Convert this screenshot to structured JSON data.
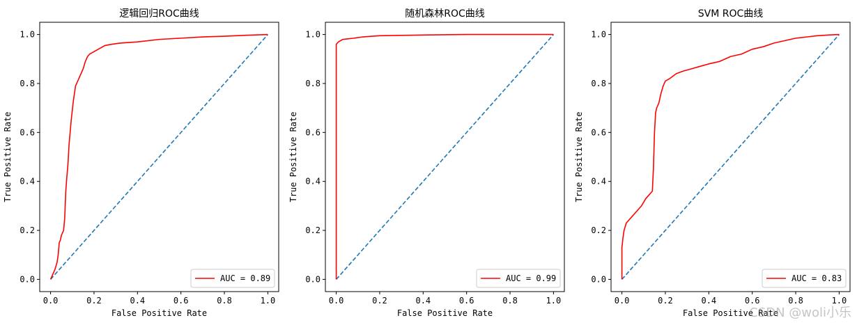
{
  "watermark": "CSDN @woli小乐",
  "colors": {
    "roc": "#ff0000",
    "diagonal": "#1f77b4",
    "axis": "#000000"
  },
  "chart_data": [
    {
      "type": "line",
      "title": "逻辑回归ROC曲线",
      "xlabel": "False Positive Rate",
      "ylabel": "True Positive Rate",
      "xlim": [
        -0.05,
        1.05
      ],
      "ylim": [
        -0.05,
        1.05
      ],
      "xticks": [
        0.0,
        0.2,
        0.4,
        0.6,
        0.8,
        1.0
      ],
      "yticks": [
        0.0,
        0.2,
        0.4,
        0.6,
        0.8,
        1.0
      ],
      "tick_labels": [
        "0.0",
        "0.2",
        "0.4",
        "0.6",
        "0.8",
        "1.0"
      ],
      "legend": {
        "label": "AUC = 0.89",
        "loc": "lower-right"
      },
      "series": [
        {
          "name": "AUC = 0.89",
          "x": [
            0.0,
            0.01,
            0.02,
            0.03,
            0.035,
            0.04,
            0.045,
            0.05,
            0.06,
            0.065,
            0.07,
            0.075,
            0.08,
            0.085,
            0.09,
            0.095,
            0.1,
            0.105,
            0.11,
            0.115,
            0.12,
            0.13,
            0.14,
            0.15,
            0.16,
            0.17,
            0.18,
            0.2,
            0.22,
            0.25,
            0.28,
            0.32,
            0.4,
            0.5,
            0.6,
            0.7,
            0.8,
            0.9,
            1.0
          ],
          "y": [
            0.0,
            0.02,
            0.04,
            0.07,
            0.1,
            0.15,
            0.16,
            0.18,
            0.2,
            0.25,
            0.36,
            0.42,
            0.47,
            0.55,
            0.6,
            0.65,
            0.69,
            0.73,
            0.76,
            0.79,
            0.8,
            0.82,
            0.84,
            0.86,
            0.89,
            0.91,
            0.92,
            0.93,
            0.94,
            0.955,
            0.96,
            0.965,
            0.97,
            0.98,
            0.985,
            0.99,
            0.993,
            0.997,
            1.0
          ]
        }
      ],
      "diagonal": {
        "x": [
          0,
          1
        ],
        "y": [
          0,
          1
        ]
      }
    },
    {
      "type": "line",
      "title": "随机森林ROC曲线",
      "xlabel": "False Positive Rate",
      "ylabel": "True Positive Rate",
      "xlim": [
        -0.05,
        1.05
      ],
      "ylim": [
        -0.05,
        1.05
      ],
      "xticks": [
        0.0,
        0.2,
        0.4,
        0.6,
        0.8,
        1.0
      ],
      "yticks": [
        0.0,
        0.2,
        0.4,
        0.6,
        0.8,
        1.0
      ],
      "tick_labels": [
        "0.0",
        "0.2",
        "0.4",
        "0.6",
        "0.8",
        "1.0"
      ],
      "legend": {
        "label": "AUC = 0.99",
        "loc": "lower-right"
      },
      "series": [
        {
          "name": "AUC = 0.99",
          "x": [
            0.0,
            0.0,
            0.005,
            0.01,
            0.03,
            0.05,
            0.08,
            0.12,
            0.2,
            0.4,
            0.6,
            1.0
          ],
          "y": [
            0.0,
            0.96,
            0.965,
            0.97,
            0.98,
            0.982,
            0.985,
            0.99,
            0.995,
            0.998,
            1.0,
            1.0
          ]
        }
      ],
      "diagonal": {
        "x": [
          0,
          1
        ],
        "y": [
          0,
          1
        ]
      }
    },
    {
      "type": "line",
      "title": "SVM ROC曲线",
      "xlabel": "False Positive Rate",
      "ylabel": "True Positive Rate",
      "xlim": [
        -0.05,
        1.05
      ],
      "ylim": [
        -0.05,
        1.05
      ],
      "xticks": [
        0.0,
        0.2,
        0.4,
        0.6,
        0.8,
        1.0
      ],
      "yticks": [
        0.0,
        0.2,
        0.4,
        0.6,
        0.8,
        1.0
      ],
      "tick_labels": [
        "0.0",
        "0.2",
        "0.4",
        "0.6",
        "0.8",
        "1.0"
      ],
      "legend": {
        "label": "AUC = 0.83",
        "loc": "lower-right"
      },
      "series": [
        {
          "name": "AUC = 0.83",
          "x": [
            0.0,
            0.0,
            0.005,
            0.01,
            0.02,
            0.03,
            0.05,
            0.07,
            0.09,
            0.11,
            0.12,
            0.13,
            0.14,
            0.145,
            0.15,
            0.155,
            0.16,
            0.17,
            0.18,
            0.19,
            0.2,
            0.22,
            0.25,
            0.28,
            0.32,
            0.36,
            0.4,
            0.45,
            0.5,
            0.55,
            0.6,
            0.65,
            0.7,
            0.75,
            0.8,
            0.85,
            0.9,
            0.95,
            1.0
          ],
          "y": [
            0.0,
            0.13,
            0.17,
            0.2,
            0.23,
            0.24,
            0.26,
            0.28,
            0.3,
            0.33,
            0.34,
            0.35,
            0.36,
            0.45,
            0.6,
            0.68,
            0.7,
            0.72,
            0.76,
            0.79,
            0.81,
            0.82,
            0.84,
            0.85,
            0.86,
            0.87,
            0.88,
            0.89,
            0.91,
            0.92,
            0.94,
            0.95,
            0.965,
            0.975,
            0.985,
            0.99,
            0.995,
            0.998,
            1.0
          ]
        }
      ],
      "diagonal": {
        "x": [
          0,
          1
        ],
        "y": [
          0,
          1
        ]
      }
    }
  ]
}
